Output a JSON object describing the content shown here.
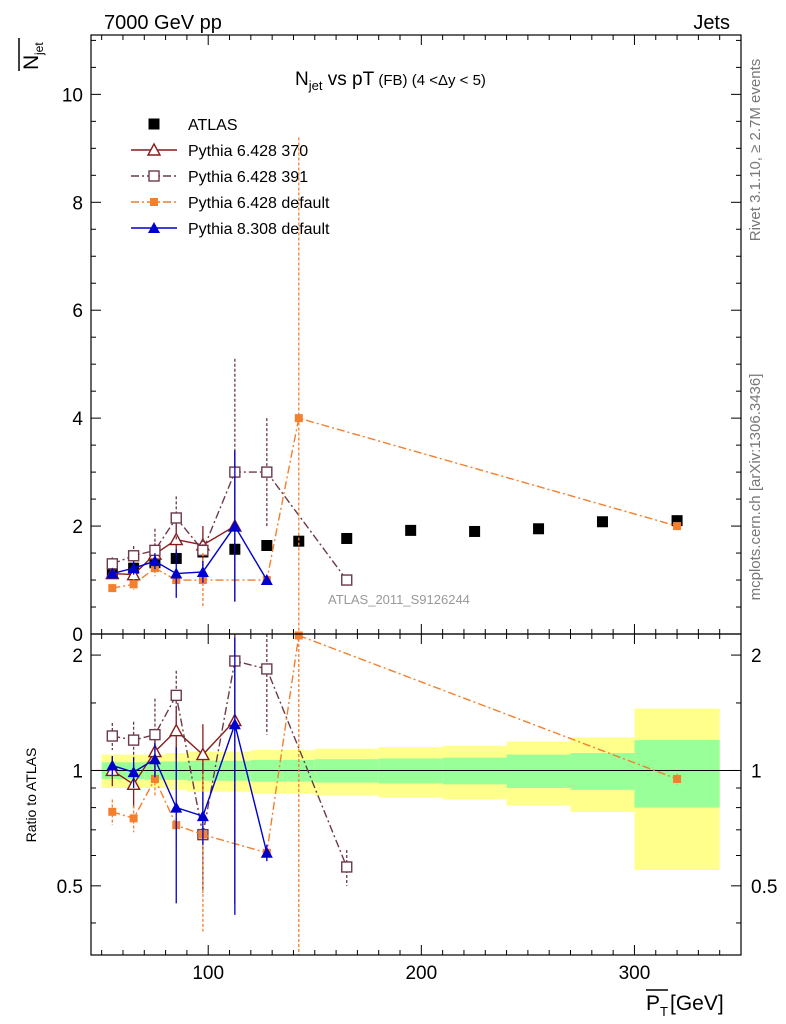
{
  "header": {
    "left": "7000 GeV pp",
    "right": "Jets"
  },
  "side_labels": {
    "rivet": "Rivet 3.1.10, ≥ 2.7M events",
    "mcplots": "mcplots.cern.ch [arXiv:1306.3436]"
  },
  "analysis_label": "ATLAS_2011_S9126244",
  "chart_data": [
    {
      "type": "scatter",
      "panel": "main",
      "title_main": "N",
      "title_sub": "jet",
      "title_rest": " vs pT",
      "title_small": " (FB) ",
      "title_range": "(4 <Δy < 5)",
      "ylabel_main": "N",
      "ylabel_sub": "jet",
      "xlim": [
        45,
        350
      ],
      "ylim": [
        0,
        11.1
      ],
      "yticks": [
        "0",
        "2",
        "4",
        "6",
        "8",
        "10"
      ],
      "legend_placement": "top-left",
      "series": [
        {
          "name": "ATLAS",
          "color": "#000000",
          "marker": "filled-square",
          "line": "none",
          "x": [
            55,
            65,
            75,
            85,
            97.5,
            112.5,
            127.5,
            142.5,
            165,
            195,
            225,
            255,
            285,
            320
          ],
          "y": [
            1.12,
            1.22,
            1.32,
            1.4,
            1.52,
            1.57,
            1.64,
            1.72,
            1.77,
            1.92,
            1.9,
            1.95,
            2.08,
            2.1
          ],
          "err": [
            0.03,
            0.03,
            0.03,
            0.04,
            0.04,
            0.05,
            0.06,
            0.07,
            0.06,
            0.06,
            0.06,
            0.07,
            0.08,
            0.1
          ]
        },
        {
          "name": "Pythia 6.428 370",
          "color": "#8b1a1a",
          "marker": "open-triangle",
          "line": "solid",
          "x": [
            55,
            65,
            75,
            85,
            97.5,
            112.5
          ],
          "y": [
            1.12,
            1.1,
            1.48,
            1.75,
            1.65,
            2.0
          ],
          "err": [
            0.1,
            0.15,
            0.2,
            0.3,
            0.35,
            1.4
          ]
        },
        {
          "name": "Pythia 6.428 391",
          "color": "#6b3a4b",
          "marker": "open-square",
          "line": "dashdot",
          "x": [
            55,
            65,
            75,
            85,
            97.5,
            112.5,
            127.5,
            165
          ],
          "y": [
            1.3,
            1.45,
            1.55,
            2.15,
            1.55,
            3.0,
            3.0,
            1.0
          ],
          "err": [
            0.12,
            0.18,
            0.4,
            0.4,
            0.3,
            2.1,
            1.0,
            0.1
          ]
        },
        {
          "name": "Pythia 6.428 default",
          "color": "#f47f2e",
          "marker": "filled-square-small",
          "line": "dashdot",
          "x": [
            55,
            65,
            75,
            85,
            97.5,
            127.5,
            142.5,
            320
          ],
          "y": [
            0.85,
            0.92,
            1.22,
            1.0,
            1.0,
            1.0,
            4.0,
            2.0
          ],
          "err": [
            0.08,
            0.1,
            0.15,
            0.1,
            0.5,
            0.05,
            5.2,
            0.05
          ]
        },
        {
          "name": "Pythia 8.308 default",
          "color": "#0000cc",
          "marker": "filled-triangle",
          "line": "solid",
          "x": [
            55,
            65,
            75,
            85,
            97.5,
            112.5,
            127.5
          ],
          "y": [
            1.12,
            1.22,
            1.35,
            1.12,
            1.15,
            2.0,
            1.0
          ],
          "err": [
            0.08,
            0.12,
            0.15,
            0.45,
            0.2,
            1.4,
            0.05
          ]
        }
      ]
    },
    {
      "type": "scatter",
      "panel": "ratio",
      "ylabel": "Ratio to ATLAS",
      "xlabel_main": "P",
      "xlabel_sub": "T",
      "xlabel_rest": " [GeV]",
      "xlim": [
        45,
        350
      ],
      "ylim": [
        0.33,
        2.27
      ],
      "xticks": [
        "100",
        "200",
        "300"
      ],
      "yticks": [
        "0.5",
        "1",
        "2"
      ],
      "bands": {
        "edges": [
          50,
          60,
          70,
          80,
          90,
          105,
          120,
          135,
          150,
          180,
          210,
          240,
          270,
          300,
          340
        ],
        "inner": [
          0.05,
          0.05,
          0.055,
          0.055,
          0.06,
          0.06,
          0.065,
          0.065,
          0.07,
          0.075,
          0.08,
          0.1,
          0.11,
          0.2
        ],
        "outer": [
          0.1,
          0.1,
          0.1,
          0.11,
          0.12,
          0.12,
          0.13,
          0.13,
          0.14,
          0.15,
          0.16,
          0.19,
          0.22,
          0.45
        ]
      },
      "band_colors": {
        "inner": "#99ff99",
        "outer": "#ffff8c"
      },
      "series": [
        {
          "name": "Pythia 6.428 370",
          "color": "#8b1a1a",
          "marker": "open-triangle",
          "line": "solid",
          "x": [
            55,
            65,
            75,
            85,
            97.5,
            112.5
          ],
          "y": [
            1.0,
            0.92,
            1.12,
            1.27,
            1.1,
            1.35
          ],
          "err": [
            0.09,
            0.12,
            0.15,
            0.2,
            0.22,
            0.9
          ]
        },
        {
          "name": "Pythia 6.428 391",
          "color": "#6b3a4b",
          "marker": "open-square",
          "line": "dashdot",
          "x": [
            55,
            65,
            75,
            85,
            97.5,
            112.5,
            127.5,
            165
          ],
          "y": [
            1.23,
            1.2,
            1.24,
            1.57,
            0.68,
            1.93,
            1.84,
            0.56
          ],
          "err": [
            0.1,
            0.14,
            0.3,
            0.25,
            0.2,
            1.3,
            0.6,
            0.06
          ]
        },
        {
          "name": "Pythia 6.428 default",
          "color": "#f47f2e",
          "marker": "filled-square-small",
          "line": "dashdot",
          "x": [
            55,
            65,
            75,
            85,
            97.5,
            127.5,
            142.5,
            320
          ],
          "y": [
            0.78,
            0.75,
            0.95,
            0.72,
            0.68,
            0.61,
            2.25,
            0.95
          ],
          "err": [
            0.06,
            0.06,
            0.1,
            0.08,
            0.3,
            0.03,
            3.0,
            0.03
          ]
        },
        {
          "name": "Pythia 8.308 default",
          "color": "#0000cc",
          "marker": "filled-triangle",
          "line": "solid",
          "x": [
            55,
            65,
            75,
            85,
            97.5,
            112.5,
            127.5
          ],
          "y": [
            1.03,
            0.99,
            1.07,
            0.8,
            0.76,
            1.32,
            0.61
          ],
          "err": [
            0.06,
            0.09,
            0.11,
            0.35,
            0.12,
            0.9,
            0.03
          ]
        }
      ]
    }
  ]
}
